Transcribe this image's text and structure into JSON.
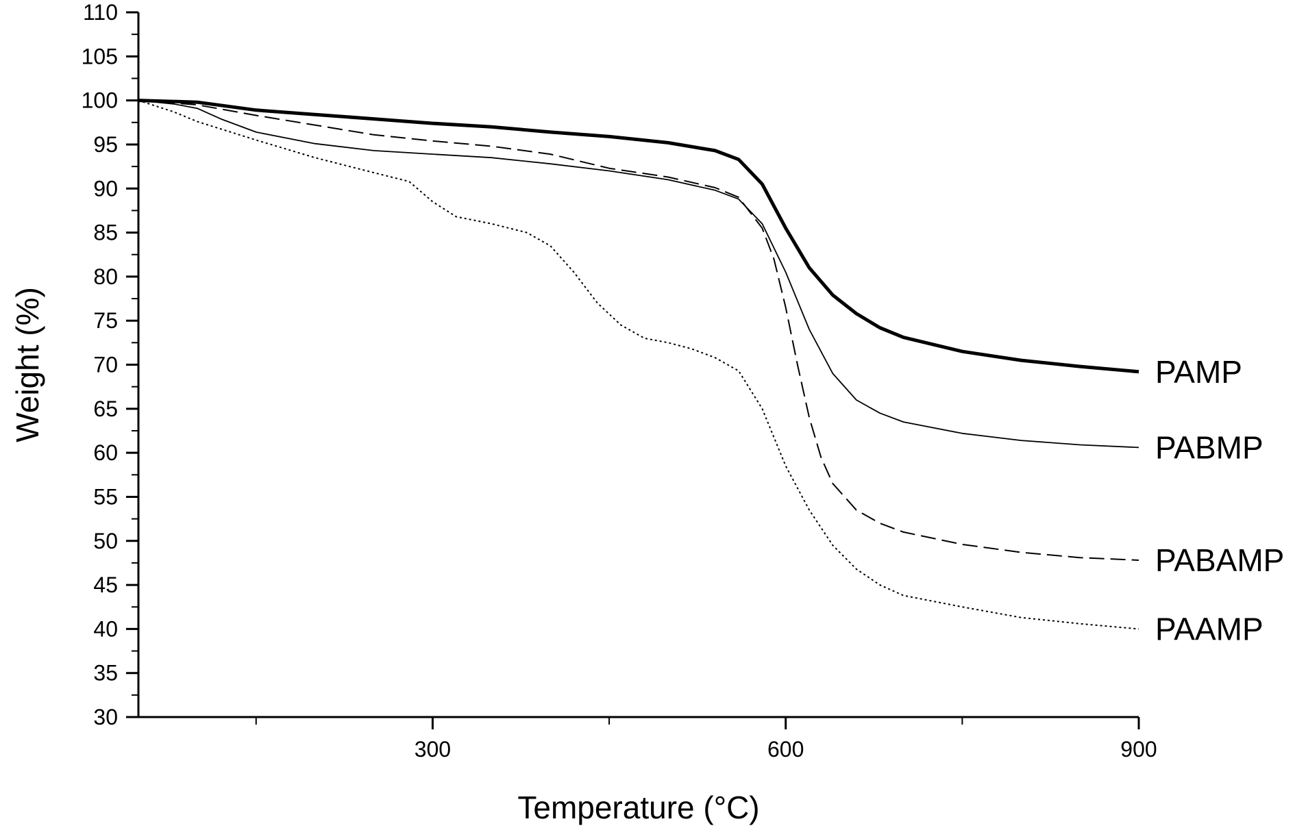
{
  "chart_data": {
    "type": "line",
    "xlabel": "Temperature (°C)",
    "ylabel": "Weight (%)",
    "xlim": [
      50,
      900
    ],
    "ylim": [
      30,
      110
    ],
    "x_ticks": [
      300,
      600,
      900
    ],
    "x_minor_ticks": [
      150,
      450,
      750
    ],
    "y_ticks": [
      30,
      35,
      40,
      45,
      50,
      55,
      60,
      65,
      70,
      75,
      80,
      85,
      90,
      95,
      100,
      105,
      110
    ],
    "grid": false,
    "legend": "none (series labelled at right end of lines)",
    "series": [
      {
        "name": "PAMP",
        "style": "thick-solid",
        "x": [
          50,
          100,
          150,
          200,
          250,
          300,
          350,
          400,
          450,
          500,
          540,
          560,
          580,
          600,
          620,
          640,
          660,
          680,
          700,
          750,
          800,
          850,
          900
        ],
        "y": [
          100,
          99.8,
          98.9,
          98.4,
          97.9,
          97.4,
          97.0,
          96.4,
          95.9,
          95.2,
          94.3,
          93.3,
          90.5,
          85.5,
          81,
          77.9,
          75.8,
          74.2,
          73.1,
          71.5,
          70.5,
          69.8,
          69.2
        ]
      },
      {
        "name": "PABMP",
        "style": "thin-solid",
        "x": [
          50,
          80,
          100,
          120,
          150,
          200,
          250,
          300,
          350,
          400,
          450,
          500,
          540,
          560,
          580,
          600,
          620,
          640,
          660,
          680,
          700,
          750,
          800,
          850,
          900
        ],
        "y": [
          100,
          99.6,
          99.1,
          97.9,
          96.4,
          95.1,
          94.3,
          93.9,
          93.5,
          92.8,
          92,
          91,
          89.8,
          88.8,
          86,
          80.5,
          74,
          69,
          66,
          64.5,
          63.5,
          62.2,
          61.4,
          60.9,
          60.6
        ]
      },
      {
        "name": "PABAMP",
        "style": "dashed",
        "x": [
          50,
          100,
          150,
          200,
          250,
          300,
          350,
          400,
          450,
          500,
          540,
          560,
          580,
          590,
          600,
          610,
          620,
          630,
          640,
          660,
          680,
          700,
          750,
          800,
          850,
          900
        ],
        "y": [
          100,
          99.5,
          98.3,
          97.2,
          96.1,
          95.4,
          94.8,
          93.9,
          92.3,
          91.3,
          90.1,
          89,
          85.5,
          82,
          76.5,
          70,
          64,
          59.5,
          56.5,
          53.5,
          52,
          51,
          49.6,
          48.7,
          48.1,
          47.8
        ]
      },
      {
        "name": "PAAMP",
        "style": "dotted",
        "x": [
          50,
          80,
          100,
          150,
          200,
          250,
          280,
          300,
          320,
          350,
          380,
          400,
          420,
          440,
          460,
          480,
          500,
          520,
          540,
          560,
          580,
          600,
          620,
          640,
          660,
          680,
          700,
          750,
          800,
          850,
          900
        ],
        "y": [
          100,
          98.7,
          97.6,
          95.5,
          93.5,
          91.8,
          90.8,
          88.5,
          86.8,
          86,
          85,
          83.5,
          80.5,
          77,
          74.5,
          73,
          72.5,
          71.8,
          70.8,
          69.3,
          65,
          58.5,
          53.5,
          49.5,
          46.8,
          45,
          43.8,
          42.5,
          41.3,
          40.6,
          40
        ]
      }
    ]
  }
}
